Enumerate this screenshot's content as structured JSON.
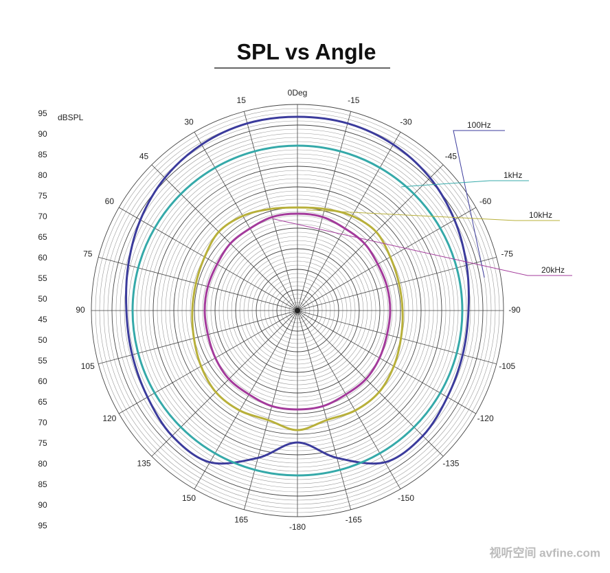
{
  "chart_data": {
    "type": "polar",
    "title": "SPL vs Angle",
    "r_axis_label": "dBSPL",
    "rlim": [
      45,
      95
    ],
    "rticks": [
      45,
      50,
      55,
      60,
      65,
      70,
      75,
      80,
      85,
      90,
      95
    ],
    "angle_ticks": [
      {
        "value": 0,
        "label": "0Deg"
      },
      15,
      -15,
      30,
      -30,
      45,
      -45,
      60,
      -60,
      75,
      -75,
      90,
      -90,
      105,
      -105,
      120,
      -120,
      135,
      -135,
      150,
      -150,
      165,
      -165,
      -180
    ],
    "grid": true,
    "theta": [
      0,
      15,
      30,
      45,
      60,
      75,
      90,
      105,
      120,
      135,
      150,
      165,
      180,
      -165,
      -150,
      -135,
      -120,
      -105,
      -90,
      -75,
      -60,
      -45,
      -30,
      -15
    ],
    "series": [
      {
        "name": "100Hz",
        "color": "#3b3b9c",
        "values": [
          92,
          92,
          91.5,
          90.5,
          89,
          87.5,
          86.5,
          86.5,
          87,
          88,
          87.5,
          82,
          77,
          82,
          87.5,
          88,
          87,
          86.5,
          86.5,
          87.5,
          89,
          90.5,
          91.5,
          92
        ]
      },
      {
        "name": "1kHz",
        "color": "#35a9a9",
        "values": [
          85,
          85,
          85,
          85,
          85,
          85,
          85,
          85,
          85,
          85,
          85,
          85,
          85,
          85,
          85,
          85,
          85,
          85,
          85,
          85,
          85,
          85,
          85,
          85
        ]
      },
      {
        "name": "10kHz",
        "color": "#b8b03a",
        "values": [
          70,
          70.5,
          71.5,
          72,
          71,
          70.5,
          70.5,
          71,
          72,
          73,
          73,
          72.5,
          74,
          72.5,
          73,
          73,
          72,
          71,
          70.5,
          70.5,
          71,
          72,
          71.5,
          70.5
        ]
      },
      {
        "name": "20kHz",
        "color": "#a33a9b",
        "values": [
          68.5,
          68.5,
          68,
          68,
          67.5,
          67.5,
          67.5,
          67.5,
          68,
          68.5,
          68.5,
          69,
          69,
          69,
          68.5,
          68.5,
          68,
          67.5,
          67.5,
          67.5,
          67.5,
          68,
          68,
          68.5
        ]
      }
    ],
    "watermark": "视听空间 avfine.com"
  }
}
